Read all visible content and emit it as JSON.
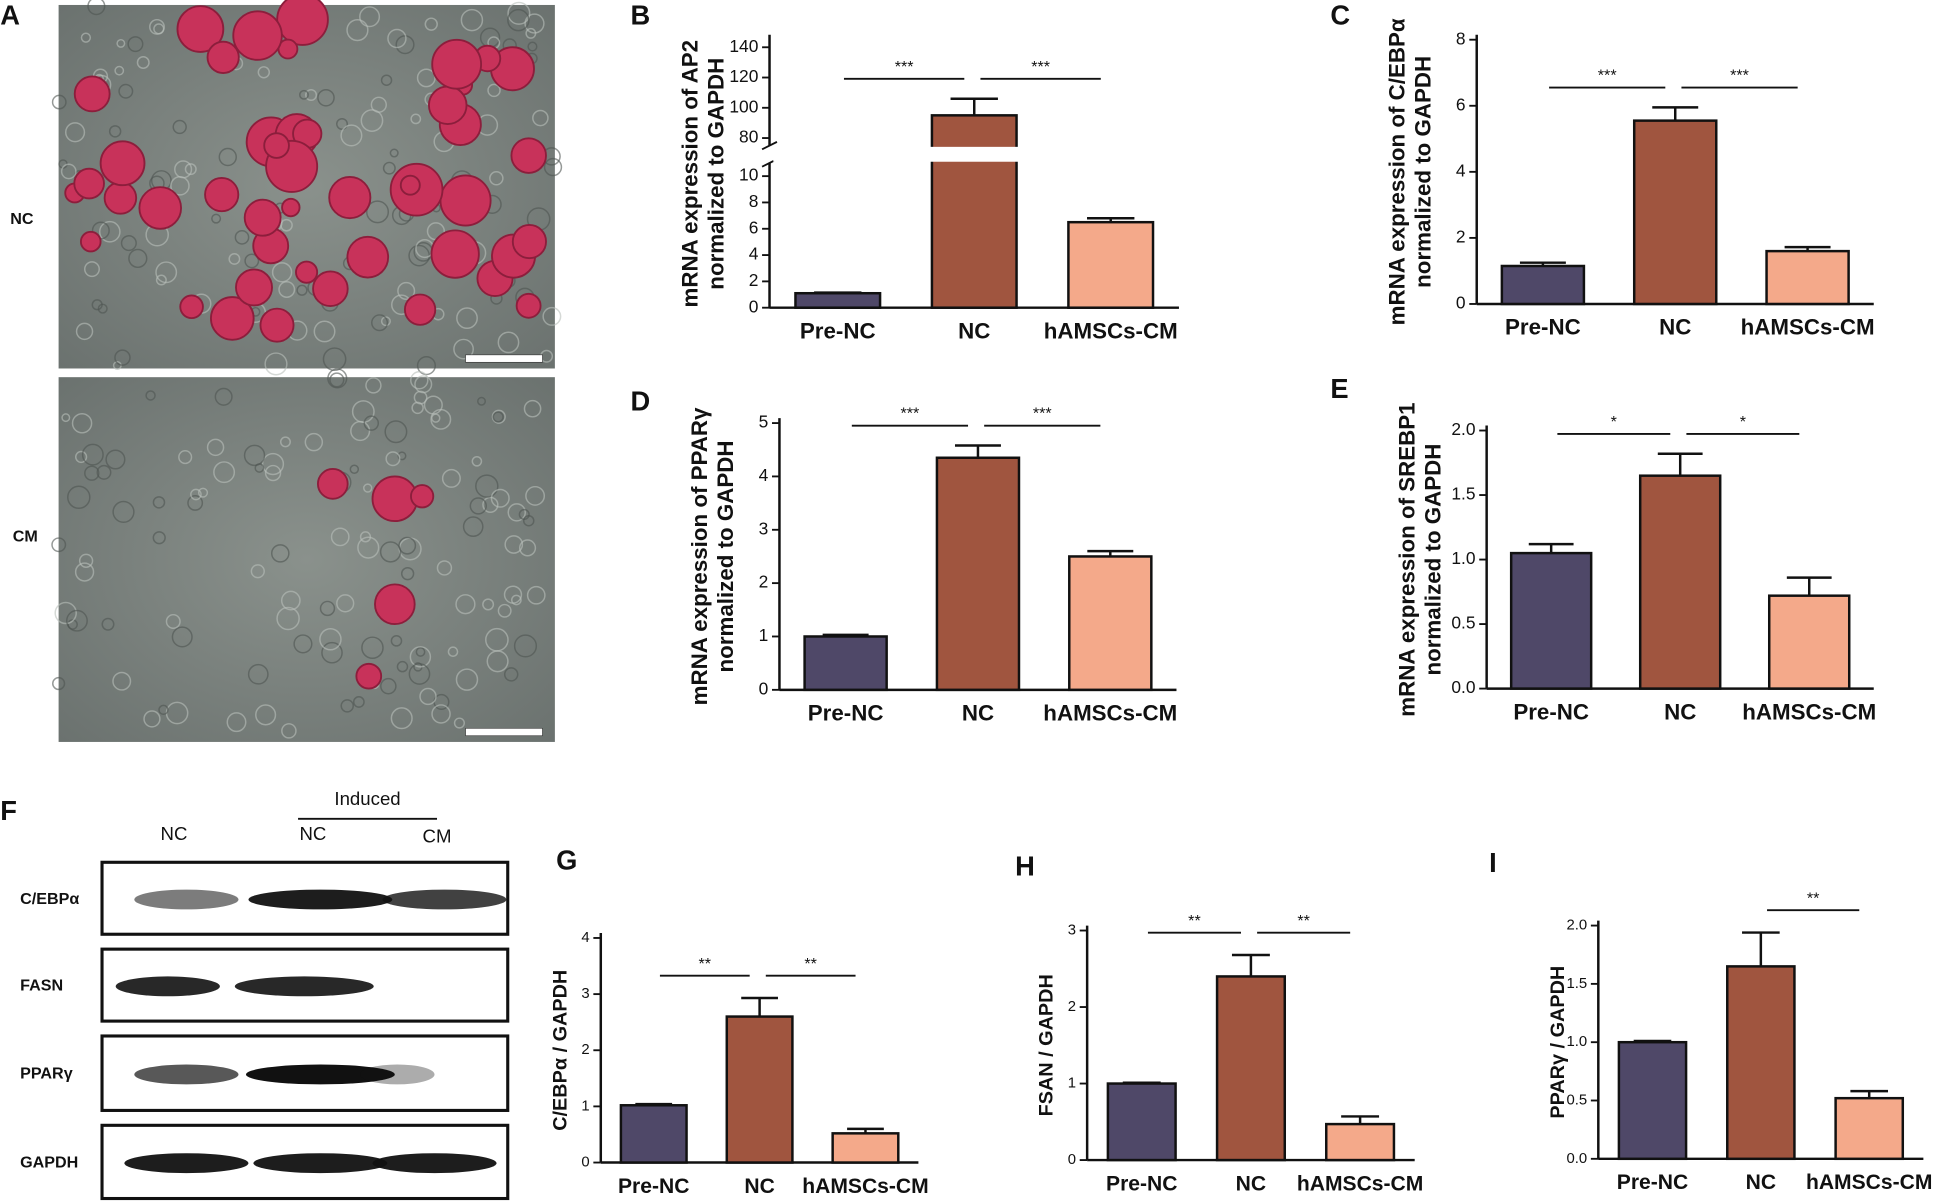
{
  "micrographs": {
    "label": "A",
    "rows": [
      "NC",
      "CM"
    ]
  },
  "western_blot": {
    "label": "F",
    "header": "Induced",
    "columns": [
      "NC",
      "NC",
      "CM"
    ],
    "rows": [
      "C/EBPα",
      "FASN",
      "PPARγ",
      "GAPDH"
    ]
  },
  "chart_data": [
    {
      "type": "bar",
      "label": "B",
      "ylabel": [
        "mRNA expression of AP2",
        "normalized to GAPDH"
      ],
      "categories": [
        "Pre-NC",
        "NC",
        "hAMSCs-CM"
      ],
      "values": [
        1.1,
        95,
        6.5
      ],
      "errors": [
        0.05,
        11,
        0.3
      ],
      "colors": [
        "#4f4868",
        "#a0553f",
        "#f4a98a"
      ],
      "significance": [
        "***",
        "***"
      ],
      "ylim": [
        0,
        145
      ],
      "ybreak": [
        11,
        75
      ],
      "yticks": [
        0,
        2,
        4,
        6,
        8,
        10,
        80,
        100,
        120,
        140
      ]
    },
    {
      "type": "bar",
      "label": "C",
      "ylabel": [
        "mRNA expression of C/EBPα",
        "normalized to GAPDH"
      ],
      "categories": [
        "Pre-NC",
        "NC",
        "hAMSCs-CM"
      ],
      "values": [
        1.15,
        5.55,
        1.6
      ],
      "errors": [
        0.1,
        0.4,
        0.12
      ],
      "colors": [
        "#4f4868",
        "#a0553f",
        "#f4a98a"
      ],
      "significance": [
        "***",
        "***"
      ],
      "ylim": [
        0,
        8
      ],
      "yticks": [
        0,
        2,
        4,
        6,
        8
      ]
    },
    {
      "type": "bar",
      "label": "D",
      "ylabel": [
        "mRNA expression of  PPARγ",
        "normalized to GAPDH"
      ],
      "categories": [
        "Pre-NC",
        "NC",
        "hAMSCs-CM"
      ],
      "values": [
        1.0,
        4.35,
        2.5
      ],
      "errors": [
        0.03,
        0.23,
        0.1
      ],
      "colors": [
        "#4f4868",
        "#a0553f",
        "#f4a98a"
      ],
      "significance": [
        "***",
        "***"
      ],
      "ylim": [
        0,
        5
      ],
      "yticks": [
        0,
        1,
        2,
        3,
        4,
        5
      ]
    },
    {
      "type": "bar",
      "label": "E",
      "ylabel": [
        "mRNA expression of SREBP1",
        "normalized to GAPDH"
      ],
      "categories": [
        "Pre-NC",
        "NC",
        "hAMSCs-CM"
      ],
      "values": [
        1.05,
        1.65,
        0.72
      ],
      "errors": [
        0.07,
        0.17,
        0.14
      ],
      "colors": [
        "#4f4868",
        "#a0553f",
        "#f4a98a"
      ],
      "significance": [
        "*",
        "*"
      ],
      "ylim": [
        0,
        2
      ],
      "yticks": [
        {
          "value": 0,
          "label": "0.0"
        },
        0.5,
        {
          "value": 1,
          "label": "1.0"
        },
        1.5,
        {
          "value": 2,
          "label": "2.0"
        }
      ]
    },
    {
      "type": "bar",
      "label": "G",
      "ylabel": [
        "C/EBPα  / GAPDH"
      ],
      "categories": [
        "Pre-NC",
        "NC",
        "hAMSCs-CM"
      ],
      "values": [
        1.02,
        2.6,
        0.52
      ],
      "errors": [
        0.02,
        0.33,
        0.08
      ],
      "colors": [
        "#4f4868",
        "#a0553f",
        "#f4a98a"
      ],
      "significance": [
        "**",
        "**"
      ],
      "ylim": [
        0,
        4
      ],
      "yticks": [
        0,
        1,
        2,
        3,
        4
      ]
    },
    {
      "type": "bar",
      "label": "H",
      "ylabel": [
        "FSAN / GAPDH"
      ],
      "categories": [
        "Pre-NC",
        "NC",
        "hAMSCs-CM"
      ],
      "values": [
        1.0,
        2.4,
        0.47
      ],
      "errors": [
        0.01,
        0.28,
        0.1
      ],
      "colors": [
        "#4f4868",
        "#a0553f",
        "#f4a98a"
      ],
      "significance": [
        "**",
        "**"
      ],
      "ylim": [
        0,
        3
      ],
      "yticks": [
        0,
        1,
        2,
        3
      ]
    },
    {
      "type": "bar",
      "label": "I",
      "ylabel": [
        "PPARγ / GAPDH"
      ],
      "categories": [
        "Pre-NC",
        "NC",
        "hAMSCs-CM"
      ],
      "values": [
        1.0,
        1.65,
        0.52
      ],
      "errors": [
        0.01,
        0.29,
        0.06
      ],
      "colors": [
        "#4f4868",
        "#a0553f",
        "#f4a98a"
      ],
      "significance": [
        null,
        "**"
      ],
      "ylim": [
        0,
        2
      ],
      "yticks": [
        {
          "value": 0,
          "label": "0.0"
        },
        0.5,
        {
          "value": 1,
          "label": "1.0"
        },
        1.5,
        {
          "value": 2,
          "label": "2.0"
        }
      ]
    }
  ]
}
